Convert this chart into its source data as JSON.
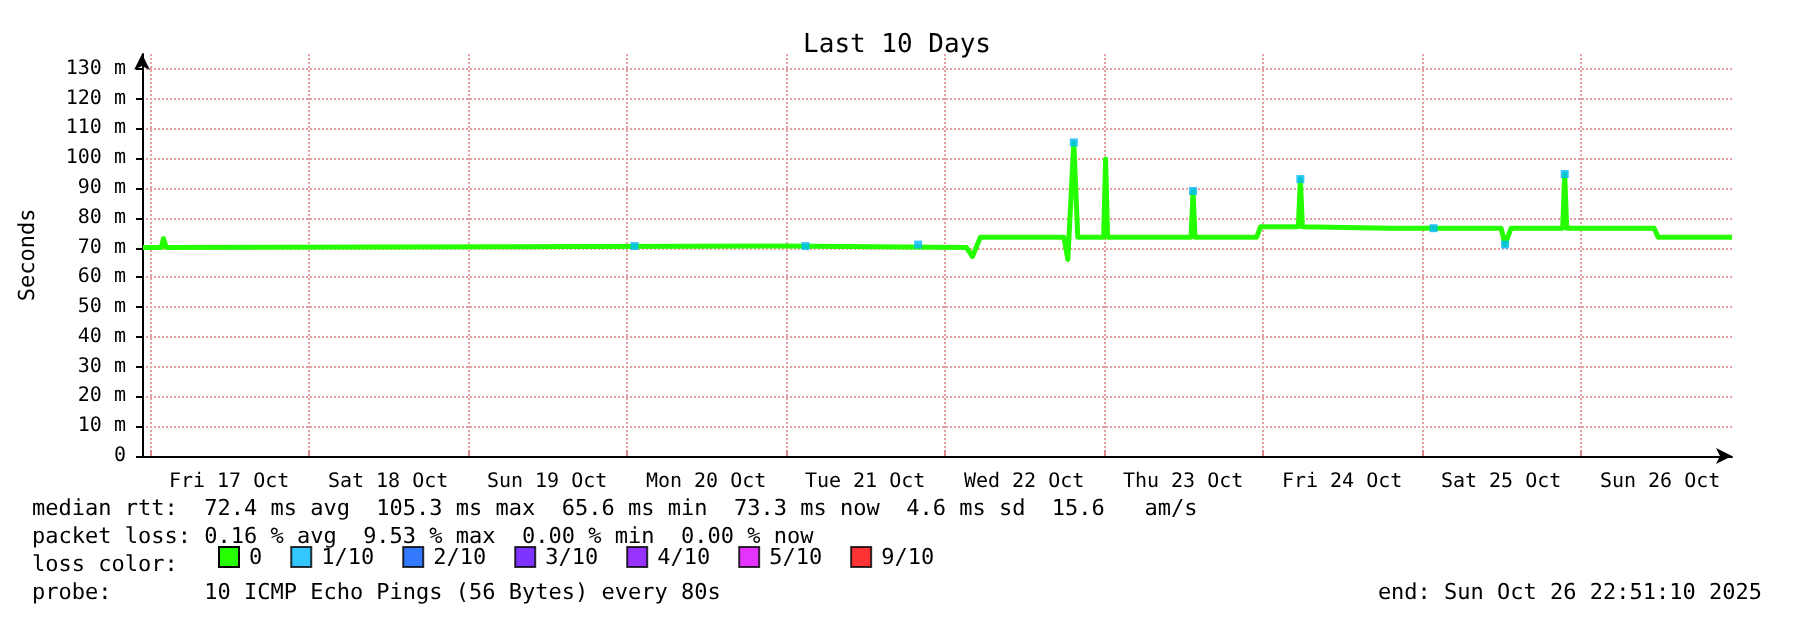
{
  "chart_data": {
    "type": "line",
    "title": "Last 10 Days",
    "ylabel": "Seconds",
    "legend_title": "loss color:",
    "legend": "bottom",
    "grid": true,
    "xlim": [
      "2025-10-16T22:51",
      "2025-10-26T22:51"
    ],
    "xticks": [
      {
        "value": "2025-10-17T00:00",
        "label": null
      },
      {
        "value": "2025-10-17T12:00",
        "label": "Fri 17 Oct"
      },
      {
        "value": "2025-10-18T00:00",
        "label": null
      },
      {
        "value": "2025-10-18T12:00",
        "label": "Sat 18 Oct"
      },
      {
        "value": "2025-10-19T00:00",
        "label": null
      },
      {
        "value": "2025-10-19T12:00",
        "label": "Sun 19 Oct"
      },
      {
        "value": "2025-10-20T00:00",
        "label": null
      },
      {
        "value": "2025-10-20T12:00",
        "label": "Mon 20 Oct"
      },
      {
        "value": "2025-10-21T00:00",
        "label": null
      },
      {
        "value": "2025-10-21T12:00",
        "label": "Tue 21 Oct"
      },
      {
        "value": "2025-10-22T00:00",
        "label": null
      },
      {
        "value": "2025-10-22T12:00",
        "label": "Wed 22 Oct"
      },
      {
        "value": "2025-10-23T00:00",
        "label": null
      },
      {
        "value": "2025-10-23T12:00",
        "label": "Thu 23 Oct"
      },
      {
        "value": "2025-10-24T00:00",
        "label": null
      },
      {
        "value": "2025-10-24T12:00",
        "label": "Fri 24 Oct"
      },
      {
        "value": "2025-10-25T00:00",
        "label": null
      },
      {
        "value": "2025-10-25T12:00",
        "label": "Sat 25 Oct"
      },
      {
        "value": "2025-10-26T00:00",
        "label": null
      },
      {
        "value": "2025-10-26T12:00",
        "label": "Sun 26 Oct"
      }
    ],
    "ylim": [
      0,
      135
    ],
    "yticks": [
      0,
      {
        "value": 10,
        "label": "10 m"
      },
      {
        "value": 20,
        "label": "20 m"
      },
      {
        "value": 30,
        "label": "30 m"
      },
      {
        "value": 40,
        "label": "40 m"
      },
      {
        "value": 50,
        "label": "50 m"
      },
      {
        "value": 60,
        "label": "60 m"
      },
      {
        "value": 70,
        "label": "70 m"
      },
      {
        "value": 80,
        "label": "80 m"
      },
      {
        "value": 90,
        "label": "90 m"
      },
      {
        "value": 100,
        "label": "100 m"
      },
      {
        "value": 110,
        "label": "110 m"
      },
      {
        "value": 120,
        "label": "120 m"
      },
      {
        "value": 130,
        "label": "130 m"
      }
    ],
    "series": [
      {
        "name": "0",
        "color": "#26ff00",
        "x": [
          "2025-10-16T23:00",
          "2025-10-17T01:45",
          "2025-10-17T02:06",
          "2025-10-17T02:30",
          "2025-10-21T00:00",
          "2025-10-22T03:18",
          "2025-10-22T04:12",
          "2025-10-22T05:24",
          "2025-10-22T18:00",
          "2025-10-22T18:36",
          "2025-10-22T19:30",
          "2025-10-22T20:06",
          "2025-10-23T00:00",
          "2025-10-23T00:18",
          "2025-10-23T00:36",
          "2025-10-23T13:12",
          "2025-10-23T13:30",
          "2025-10-23T13:48",
          "2025-10-23T23:06",
          "2025-10-23T23:42",
          "2025-10-24T05:24",
          "2025-10-24T05:42",
          "2025-10-24T06:00",
          "2025-10-24T19:12",
          "2025-10-25T12:00",
          "2025-10-25T12:36",
          "2025-10-25T13:30",
          "2025-10-25T21:18",
          "2025-10-25T21:36",
          "2025-10-25T21:54",
          "2025-10-26T11:06",
          "2025-10-26T11:42",
          "2025-10-26T22:51"
        ],
        "values": [
          70,
          70,
          73,
          70,
          70.5,
          70,
          67,
          73.5,
          73.5,
          66,
          105.3,
          73.5,
          73.5,
          99.7,
          73.5,
          73.5,
          89,
          73.5,
          73.5,
          77,
          77,
          93,
          77,
          76.5,
          76.5,
          71,
          76.5,
          76.5,
          94.7,
          76.5,
          76.5,
          73.5,
          73.5
        ]
      },
      {
        "name": "1/10",
        "type": "scatter",
        "color": "#00b8ff",
        "x": [
          "2025-10-20T01:12",
          "2025-10-21T03:00",
          "2025-10-21T20:00",
          "2025-10-22T19:30",
          "2025-10-23T13:30",
          "2025-10-24T05:42",
          "2025-10-25T01:48",
          "2025-10-25T12:36",
          "2025-10-25T21:36"
        ],
        "values": [
          70.5,
          70.5,
          71,
          105.3,
          89,
          93,
          76.5,
          71,
          94.7
        ]
      },
      {
        "name": "2/10",
        "type": "scatter",
        "color": "#0059ff"
      },
      {
        "name": "3/10",
        "type": "scatter",
        "color": "#5e00ff"
      },
      {
        "name": "4/10",
        "type": "scatter",
        "color": "#7e00ff"
      },
      {
        "name": "5/10",
        "type": "scatter",
        "color": "#dd00ff"
      },
      {
        "name": "9/10",
        "type": "scatter",
        "color": "#ff0000"
      }
    ],
    "annotations": [
      "median rtt:  72.4 ms avg  105.3 ms max  65.6 ms min  73.3 ms now  4.6 ms sd  15.6   am/s",
      "packet loss: 0.16 % avg  9.53 % max  0.00 % min  0.00 % now",
      "probe:       10 ICMP Echo Pings (56 Bytes) every 80s",
      "end: Sun Oct 26 22:51:10 2025"
    ]
  }
}
